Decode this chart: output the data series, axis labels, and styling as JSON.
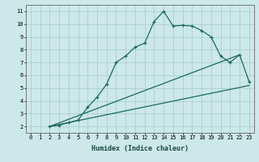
{
  "xlabel": "Humidex (Indice chaleur)",
  "bg_color": "#cce8e8",
  "grid_color": "#aacfcf",
  "line_color": "#1a6b5a",
  "line1_x": [
    2,
    3,
    4,
    5,
    6,
    7,
    8,
    9,
    10,
    11,
    12,
    13,
    14,
    15,
    16,
    17,
    18,
    19,
    20,
    21,
    22,
    23
  ],
  "line1_y": [
    2.0,
    2.1,
    2.3,
    2.5,
    3.5,
    4.3,
    5.3,
    7.0,
    7.5,
    8.2,
    8.5,
    10.2,
    11.0,
    9.85,
    9.9,
    9.85,
    9.5,
    9.0,
    7.5,
    7.0,
    7.6,
    5.5
  ],
  "line2_x": [
    2,
    22
  ],
  "line2_y": [
    2.0,
    7.6
  ],
  "line3_x": [
    2,
    23
  ],
  "line3_y": [
    2.0,
    5.2
  ],
  "xlim": [
    -0.5,
    23.5
  ],
  "ylim": [
    1.5,
    11.5
  ],
  "xticks": [
    0,
    1,
    2,
    3,
    4,
    5,
    6,
    7,
    8,
    9,
    10,
    11,
    12,
    13,
    14,
    15,
    16,
    17,
    18,
    19,
    20,
    21,
    22,
    23
  ],
  "yticks": [
    2,
    3,
    4,
    5,
    6,
    7,
    8,
    9,
    10,
    11
  ],
  "tick_fontsize": 5.0,
  "xlabel_fontsize": 6.0
}
